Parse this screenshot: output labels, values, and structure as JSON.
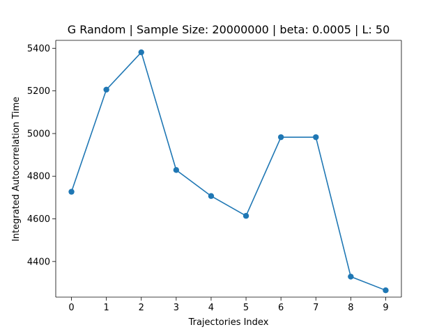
{
  "chart_data": {
    "type": "line",
    "title": "G Random | Sample Size: 20000000 | beta: 0.0005 | L: 50",
    "xlabel": "Trajectories Index",
    "ylabel": "Integrated Autocorrelation Time",
    "x": [
      0,
      1,
      2,
      3,
      4,
      5,
      6,
      7,
      8,
      9
    ],
    "y": [
      4727,
      5206,
      5381,
      4829,
      4707,
      4614,
      4983,
      4983,
      4329,
      4265
    ],
    "xlim": [
      -0.45,
      9.45
    ],
    "ylim": [
      4233,
      5437
    ],
    "xticks": [
      0,
      1,
      2,
      3,
      4,
      5,
      6,
      7,
      8,
      9
    ],
    "yticks": [
      4400,
      4600,
      4800,
      5000,
      5200,
      5400
    ],
    "grid": false,
    "legend": "none",
    "marker": "circle",
    "color": "#1f77b4"
  }
}
